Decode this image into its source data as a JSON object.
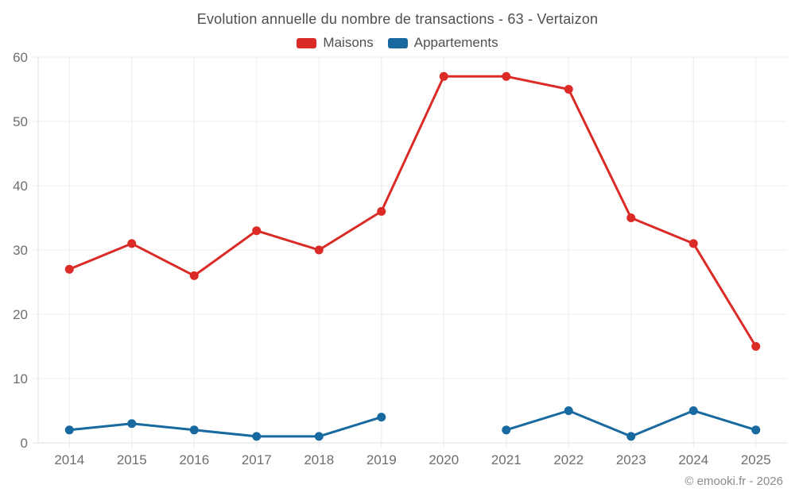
{
  "title": "Evolution annuelle du nombre de transactions - 63 - Vertaizon",
  "footer": "© emooki.fr - 2026",
  "colors": {
    "maisons": "#db2b27",
    "appartements": "#17699f",
    "gridline": "#ececec",
    "axis_line": "#e0e0e0",
    "axis_label": "#6e6e6e",
    "title_text": "#4f4f4f",
    "footer_text": "#8a8a8a"
  },
  "chart_data": {
    "type": "line",
    "title": "Evolution annuelle du nombre de transactions - 63 - Vertaizon",
    "categories": [
      "2014",
      "2015",
      "2016",
      "2017",
      "2018",
      "2019",
      "2020",
      "2021",
      "2022",
      "2023",
      "2024",
      "2025"
    ],
    "series": [
      {
        "name": "Maisons",
        "color": "#db2b27",
        "values": [
          27,
          31,
          26,
          33,
          30,
          36,
          57,
          57,
          55,
          35,
          31,
          15
        ]
      },
      {
        "name": "Appartements",
        "color": "#17699f",
        "values": [
          2,
          3,
          2,
          1,
          1,
          4,
          null,
          2,
          5,
          1,
          5,
          2
        ]
      }
    ],
    "xlabel": "",
    "ylabel": "",
    "ylim": [
      0,
      60
    ],
    "ytick_step": 10,
    "yticks": [
      0,
      10,
      20,
      30,
      40,
      50,
      60
    ],
    "grid": true,
    "legend_position": "top"
  }
}
